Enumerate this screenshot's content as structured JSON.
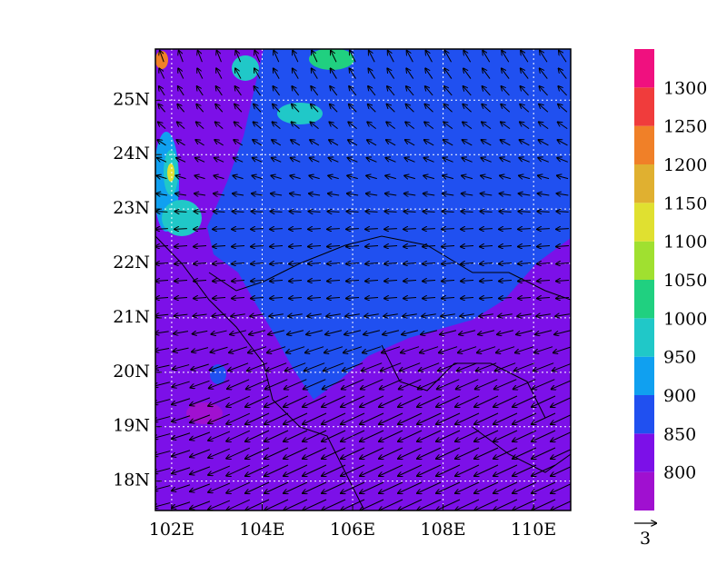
{
  "chart_data": {
    "type": "contour-vector",
    "xlim": [
      101.64,
      110.82
    ],
    "ylim": [
      17.46,
      25.94
    ],
    "xticks": [
      {
        "value": 102,
        "label": "102E"
      },
      {
        "value": 104,
        "label": "104E"
      },
      {
        "value": 106,
        "label": "106E"
      },
      {
        "value": 108,
        "label": "108E"
      },
      {
        "value": 110,
        "label": "110E"
      }
    ],
    "yticks": [
      {
        "value": 18,
        "label": "18N"
      },
      {
        "value": 19,
        "label": "19N"
      },
      {
        "value": 20,
        "label": "20N"
      },
      {
        "value": 21,
        "label": "21N"
      },
      {
        "value": 22,
        "label": "22N"
      },
      {
        "value": 23,
        "label": "23N"
      },
      {
        "value": 24,
        "label": "24N"
      },
      {
        "value": 25,
        "label": "25N"
      }
    ],
    "grid": true,
    "colorbar": {
      "levels": [
        800,
        850,
        900,
        950,
        1000,
        1050,
        1100,
        1150,
        1200,
        1250,
        1300
      ],
      "colors": [
        "#a010d0",
        "#7c10e8",
        "#2050f0",
        "#10a0f0",
        "#20c8c8",
        "#20d080",
        "#a0e030",
        "#e0e030",
        "#e0b030",
        "#f08028",
        "#f03c3c",
        "#f0107f"
      ]
    },
    "vector_reference": {
      "label": "3"
    }
  }
}
